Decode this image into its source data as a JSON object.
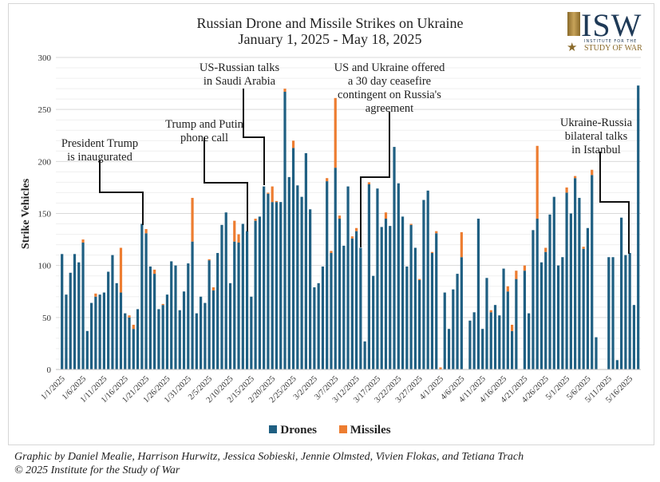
{
  "title_line1": "Russian Drone and Missile Strikes on Ukraine",
  "title_line2": "January 1, 2025 - May 18, 2025",
  "logo": {
    "letters": "ISW",
    "small": "INSTITUTE FOR THE",
    "bottom": "STUDY OF WAR"
  },
  "annotations": [
    "President Trump\nis inaugurated",
    "Trump and Putin\nphone call",
    "US-Russian talks\nin Saudi Arabia",
    "US and Ukraine offered\na 30 day ceasefire\ncontingent on Russia's\nagreement",
    "Ukraine-Russia\nbilateral talks\nin Istanbul"
  ],
  "footer": {
    "credits": "Graphic by Daniel Mealie, Harrison Hurwitz, Jessica Sobieski, Jennie Olmsted, Vivien Flokas, and Tetiana Trach",
    "copyright": "© 2025 Institute for the Study of War"
  },
  "chart_data": {
    "type": "bar",
    "stacked": true,
    "title": "Russian Drone and Missile Strikes on Ukraine",
    "subtitle": "January 1, 2025 - May 18, 2025",
    "xlabel": "",
    "ylabel": "Strike Vehicles",
    "ylim": [
      0,
      300
    ],
    "yticks": [
      0,
      50,
      100,
      150,
      200,
      250,
      300
    ],
    "grid": true,
    "legend": "bottom",
    "x_start": "1/1/2025",
    "x_end": "5/18/2025",
    "xtick_labels": [
      "1/1/2025",
      "1/6/2025",
      "1/11/2025",
      "1/16/2025",
      "1/21/2025",
      "1/26/2025",
      "1/31/2025",
      "2/5/2025",
      "2/10/2025",
      "2/15/2025",
      "2/20/2025",
      "2/25/2025",
      "3/2/2025",
      "3/7/2025",
      "3/12/2025",
      "3/17/2025",
      "3/22/2025",
      "3/27/2025",
      "4/1/2025",
      "4/6/2025",
      "4/11/2025",
      "4/16/2025",
      "4/21/2025",
      "4/26/2025",
      "5/1/2025",
      "5/6/2025",
      "5/11/2025",
      "5/16/2025"
    ],
    "series": [
      {
        "name": "Drones",
        "color": "#1f5f82",
        "values": [
          111,
          72,
          93,
          111,
          103,
          122,
          37,
          64,
          70,
          72,
          74,
          94,
          110,
          83,
          74,
          54,
          50,
          39,
          58,
          140,
          131,
          99,
          92,
          58,
          62,
          72,
          104,
          100,
          57,
          75,
          102,
          123,
          54,
          70,
          64,
          105,
          76,
          112,
          139,
          151,
          83,
          123,
          122,
          140,
          133,
          70,
          143,
          147,
          176,
          169,
          161,
          161,
          161,
          267,
          185,
          213,
          177,
          166,
          208,
          154,
          79,
          83,
          99,
          181,
          112,
          194,
          145,
          119,
          176,
          126,
          133,
          117,
          27,
          178,
          90,
          174,
          137,
          145,
          138,
          214,
          179,
          147,
          99,
          139,
          117,
          86,
          163,
          172,
          112,
          131,
          0,
          74,
          39,
          77,
          92,
          108,
          null,
          47,
          55,
          145,
          39,
          88,
          55,
          62,
          52,
          97,
          75,
          37,
          87,
          null,
          95,
          54,
          134,
          145,
          103,
          113,
          149,
          166,
          100,
          108,
          170,
          150,
          184,
          165,
          116,
          136,
          187,
          31,
          null,
          null,
          108,
          108,
          9,
          146,
          110,
          112,
          62,
          273
        ]
      },
      {
        "name": "Missiles",
        "color": "#ed7d31",
        "values": [
          0,
          0,
          0,
          0,
          0,
          3,
          0,
          0,
          3,
          0,
          0,
          0,
          0,
          0,
          43,
          0,
          2,
          4,
          0,
          0,
          4,
          0,
          4,
          0,
          1,
          0,
          0,
          0,
          0,
          0,
          0,
          42,
          0,
          0,
          0,
          1,
          3,
          0,
          0,
          0,
          0,
          20,
          8,
          0,
          0,
          0,
          2,
          0,
          0,
          1,
          15,
          1,
          0,
          3,
          0,
          7,
          0,
          0,
          0,
          0,
          0,
          0,
          0,
          3,
          2,
          67,
          3,
          0,
          0,
          2,
          3,
          0,
          0,
          2,
          0,
          0,
          0,
          6,
          0,
          0,
          0,
          0,
          0,
          1,
          0,
          1,
          0,
          0,
          1,
          2,
          2,
          0,
          0,
          0,
          0,
          24,
          null,
          0,
          0,
          0,
          0,
          0,
          2,
          0,
          0,
          0,
          5,
          6,
          8,
          null,
          5,
          0,
          0,
          70,
          0,
          4,
          0,
          0,
          0,
          0,
          5,
          0,
          2,
          0,
          2,
          0,
          5,
          0,
          null,
          null,
          0,
          0,
          0,
          0,
          0,
          0,
          0,
          0
        ]
      }
    ]
  }
}
